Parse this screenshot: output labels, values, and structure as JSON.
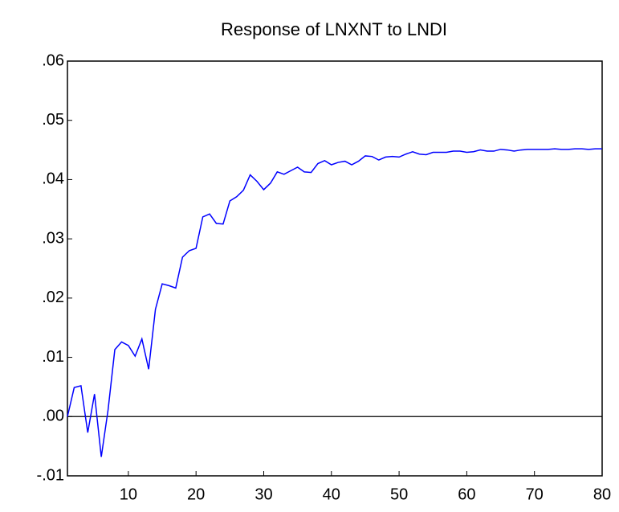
{
  "chart_data": {
    "type": "line",
    "title": "Response of LNXNT to LNDI",
    "x": [
      1,
      2,
      3,
      4,
      5,
      6,
      7,
      8,
      9,
      10,
      11,
      12,
      13,
      14,
      15,
      16,
      17,
      18,
      19,
      20,
      21,
      22,
      23,
      24,
      25,
      26,
      27,
      28,
      29,
      30,
      31,
      32,
      33,
      34,
      35,
      36,
      37,
      38,
      39,
      40,
      41,
      42,
      43,
      44,
      45,
      46,
      47,
      48,
      49,
      50,
      51,
      52,
      53,
      54,
      55,
      56,
      57,
      58,
      59,
      60,
      61,
      62,
      63,
      64,
      65,
      66,
      67,
      68,
      69,
      70,
      71,
      72,
      73,
      74,
      75,
      76,
      77,
      78,
      79,
      80
    ],
    "series": [
      {
        "name": "LNXNT",
        "color": "#0000ff",
        "values": [
          0.0,
          0.0049,
          0.0052,
          -0.0027,
          0.0038,
          -0.0068,
          0.0011,
          0.0113,
          0.0126,
          0.012,
          0.0102,
          0.0131,
          0.008,
          0.0181,
          0.0224,
          0.0221,
          0.0217,
          0.0269,
          0.028,
          0.0284,
          0.0337,
          0.0342,
          0.0326,
          0.0325,
          0.0364,
          0.0371,
          0.0382,
          0.0408,
          0.0397,
          0.0383,
          0.0394,
          0.0413,
          0.0409,
          0.0415,
          0.0421,
          0.0413,
          0.0412,
          0.0427,
          0.0432,
          0.0425,
          0.0429,
          0.0431,
          0.0425,
          0.0431,
          0.044,
          0.0439,
          0.0433,
          0.0438,
          0.0439,
          0.0438,
          0.0443,
          0.0447,
          0.0443,
          0.0442,
          0.0446,
          0.0446,
          0.0446,
          0.0448,
          0.0448,
          0.0446,
          0.0447,
          0.045,
          0.0448,
          0.0448,
          0.0451,
          0.045,
          0.0448,
          0.045,
          0.0451,
          0.0451,
          0.0451,
          0.0451,
          0.0452,
          0.0451,
          0.0451,
          0.0452,
          0.0452,
          0.0451,
          0.0452,
          0.0452
        ]
      }
    ],
    "xlim": [
      1,
      80
    ],
    "xticks": [
      10,
      20,
      30,
      40,
      50,
      60,
      70,
      80
    ],
    "ylim": [
      -0.01,
      0.06
    ],
    "yticks": [
      {
        "value": -0.01,
        "label": "-.01"
      },
      {
        "value": 0,
        "label": ".00"
      },
      {
        "value": 0.01,
        "label": ".01"
      },
      {
        "value": 0.02,
        "label": ".02"
      },
      {
        "value": 0.03,
        "label": ".03"
      },
      {
        "value": 0.04,
        "label": ".04"
      },
      {
        "value": 0.05,
        "label": ".05"
      },
      {
        "value": 0.06,
        "label": ".06"
      }
    ]
  }
}
